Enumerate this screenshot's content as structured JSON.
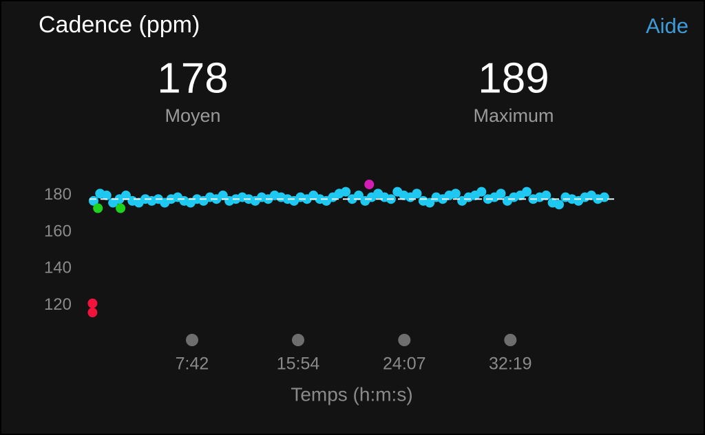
{
  "header": {
    "title": "Cadence (ppm)",
    "help": "Aide"
  },
  "stats": [
    {
      "value": 178,
      "label": "Moyen"
    },
    {
      "value": 189,
      "label": "Maximum"
    }
  ],
  "chart_data": {
    "type": "scatter",
    "x_label": "Temps (h:m:s)",
    "xlim": [
      0,
      2440
    ],
    "ylim": [
      110,
      192
    ],
    "xticks": [
      {
        "value": 462,
        "label": "7:42"
      },
      {
        "value": 954,
        "label": "15:54"
      },
      {
        "value": 1447,
        "label": "24:07"
      },
      {
        "value": 1939,
        "label": "32:19"
      }
    ],
    "yticks": [
      120,
      140,
      160,
      180
    ],
    "series": [
      {
        "color": "#1ec8f0",
        "x": [
          5,
          35,
          65,
          95,
          125,
          155,
          185,
          215,
          245,
          275,
          305,
          335,
          365,
          395,
          425,
          455,
          485,
          515,
          545,
          575,
          605,
          635,
          665,
          695,
          725,
          755,
          785,
          815,
          845,
          875,
          905,
          935,
          965,
          995,
          1025,
          1055,
          1085,
          1115,
          1145,
          1175,
          1205,
          1235,
          1265,
          1295,
          1325,
          1355,
          1385,
          1415,
          1445,
          1475,
          1505,
          1535,
          1565,
          1595,
          1625,
          1655,
          1685,
          1715,
          1745,
          1775,
          1805,
          1835,
          1865,
          1895,
          1925,
          1955,
          1985,
          2015,
          2045,
          2075,
          2105,
          2135,
          2165,
          2195,
          2225,
          2255,
          2285,
          2315,
          2345,
          2375
        ],
        "values": [
          177,
          181,
          180,
          176,
          178,
          180,
          177,
          176,
          178,
          177,
          178,
          176,
          178,
          179,
          177,
          176,
          178,
          177,
          179,
          178,
          180,
          177,
          178,
          179,
          178,
          177,
          179,
          178,
          180,
          179,
          178,
          177,
          179,
          178,
          180,
          178,
          177,
          179,
          181,
          182,
          178,
          180,
          177,
          179,
          181,
          179,
          178,
          182,
          180,
          179,
          181,
          177,
          176,
          179,
          178,
          180,
          181,
          177,
          179,
          180,
          182,
          178,
          179,
          181,
          177,
          179,
          180,
          182,
          178,
          179,
          180,
          176,
          175,
          179,
          178,
          177,
          179,
          180,
          178,
          179
        ]
      },
      {
        "color": "#1ed21e",
        "x": [
          25,
          130
        ],
        "values": [
          173,
          173
        ]
      },
      {
        "color": "#f0143c",
        "x": [
          0,
          0
        ],
        "values": [
          121,
          116
        ]
      },
      {
        "color": "#d21eb4",
        "x": [
          1284
        ],
        "values": [
          186
        ]
      }
    ]
  }
}
